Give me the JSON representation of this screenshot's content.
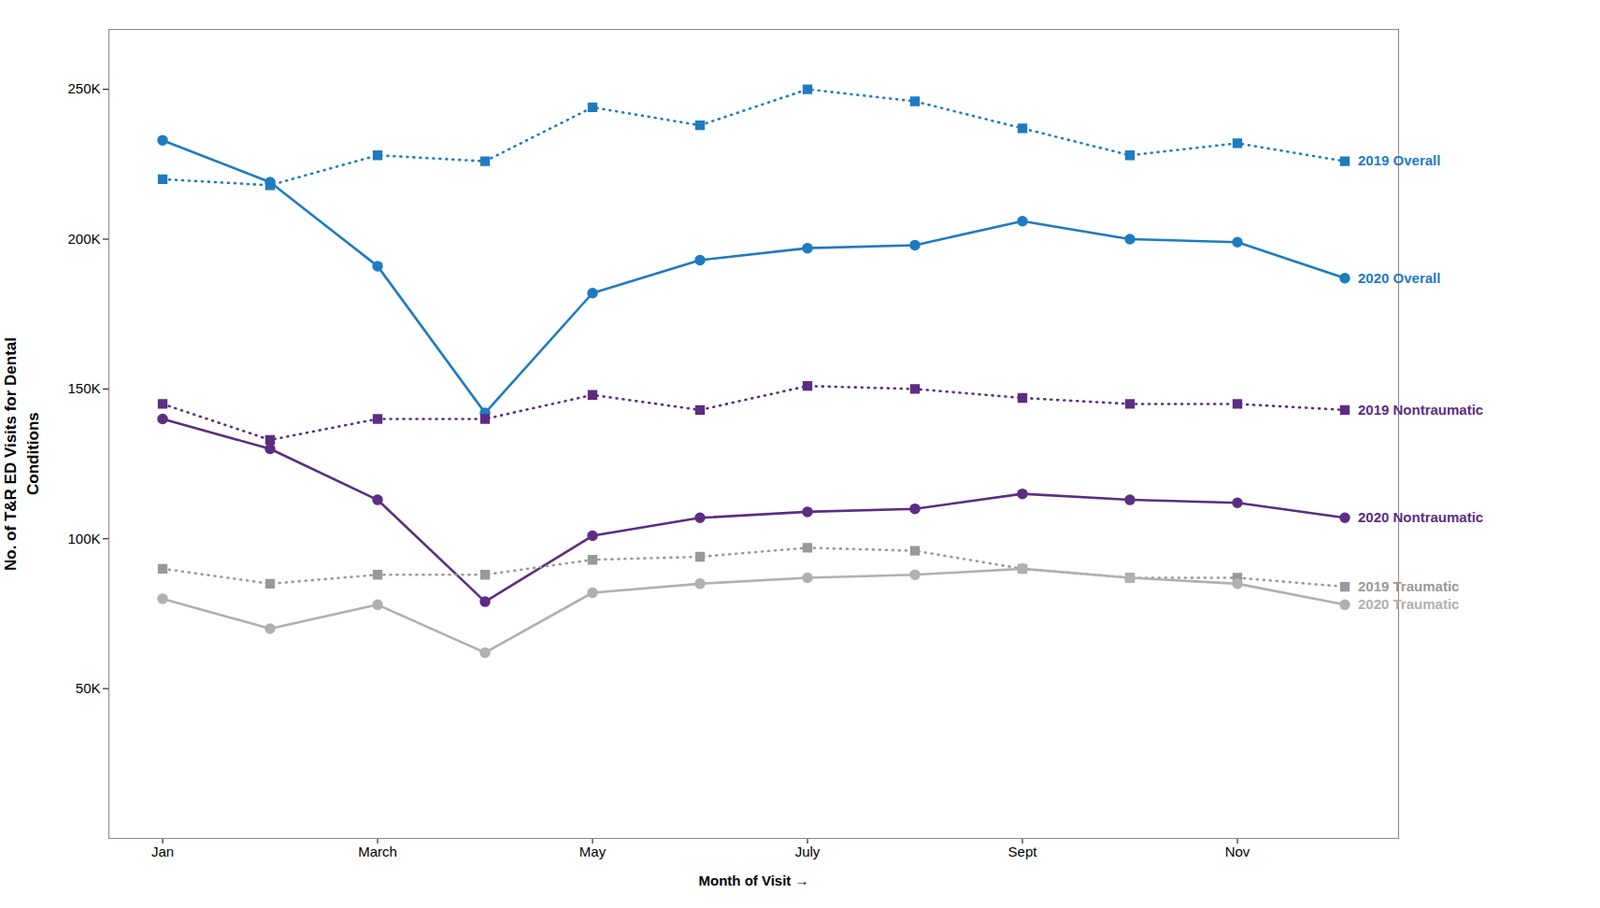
{
  "chart_data": {
    "type": "line",
    "xlabel": "Month of Visit",
    "ylabel": "No. of T&R ED Visits for Dental\nConditions",
    "x": [
      1,
      2,
      3,
      4,
      5,
      6,
      7,
      8,
      9,
      10,
      11,
      12
    ],
    "xlim": [
      0.5,
      12.5
    ],
    "xticks": [
      {
        "value": 1,
        "label": "Jan"
      },
      {
        "value": 3,
        "label": "March"
      },
      {
        "value": 5,
        "label": "May"
      },
      {
        "value": 7,
        "label": "July"
      },
      {
        "value": 9,
        "label": "Sept"
      },
      {
        "value": 11,
        "label": "Nov"
      }
    ],
    "ylim": [
      0,
      270000
    ],
    "yticks": [
      {
        "value": 50000,
        "label": "50K"
      },
      {
        "value": 100000,
        "label": "100K"
      },
      {
        "value": 150000,
        "label": "150K"
      },
      {
        "value": 200000,
        "label": "200K"
      },
      {
        "value": 250000,
        "label": "250K"
      }
    ],
    "grid": false,
    "series": [
      {
        "name": "2019 Overall",
        "color": "#1F7BC0",
        "marker": "square",
        "line_style": "dotted",
        "values": [
          220000,
          218000,
          228000,
          226000,
          244000,
          238000,
          250000,
          246000,
          237000,
          228000,
          232000,
          226000
        ]
      },
      {
        "name": "2020 Overall",
        "color": "#1F7BC0",
        "marker": "circle",
        "line_style": "solid",
        "values": [
          233000,
          219000,
          191000,
          142000,
          182000,
          193000,
          197000,
          198000,
          206000,
          200000,
          199000,
          187000
        ]
      },
      {
        "name": "2019 Nontraumatic",
        "color": "#5C2D82",
        "marker": "square",
        "line_style": "dotted",
        "values": [
          145000,
          133000,
          140000,
          140000,
          148000,
          143000,
          151000,
          150000,
          147000,
          145000,
          145000,
          143000
        ]
      },
      {
        "name": "2020 Nontraumatic",
        "color": "#5C2D82",
        "marker": "circle",
        "line_style": "solid",
        "values": [
          140000,
          130000,
          113000,
          79000,
          101000,
          107000,
          109000,
          110000,
          115000,
          113000,
          112000,
          107000
        ]
      },
      {
        "name": "2019 Traumatic",
        "color": "#999999",
        "marker": "square",
        "line_style": "dotted",
        "values": [
          90000,
          85000,
          88000,
          88000,
          93000,
          94000,
          97000,
          96000,
          90000,
          87000,
          87000,
          84000
        ]
      },
      {
        "name": "2020 Traumatic",
        "color": "#B0B0B0",
        "marker": "circle",
        "line_style": "solid",
        "values": [
          80000,
          70000,
          78000,
          62000,
          82000,
          85000,
          87000,
          88000,
          90000,
          87000,
          85000,
          78000
        ]
      }
    ]
  }
}
